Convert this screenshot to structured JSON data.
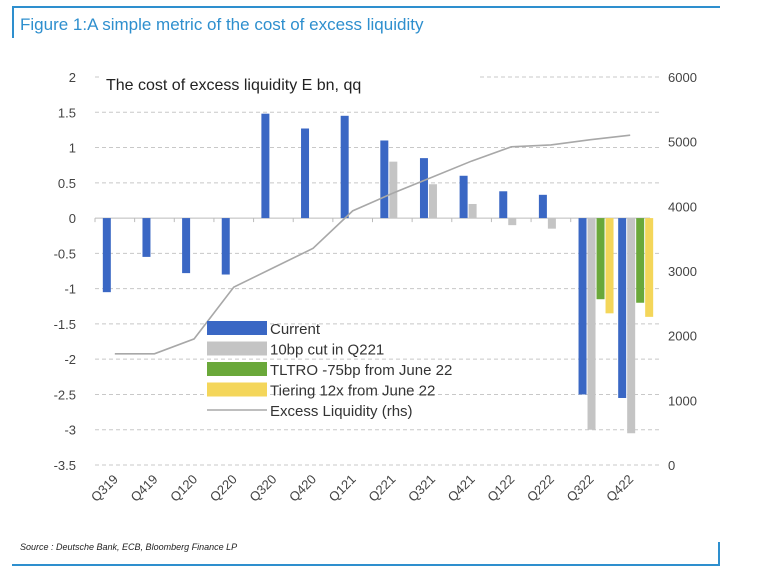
{
  "figure_title": "Figure 1:A simple metric of the cost of excess liquidity",
  "source": "Source : Deutsche Bank, ECB, Bloomberg Finance LP",
  "chart_data": {
    "type": "bar",
    "title": "The cost of excess liquidity E bn, qq",
    "categories": [
      "Q319",
      "Q419",
      "Q120",
      "Q220",
      "Q320",
      "Q420",
      "Q121",
      "Q221",
      "Q321",
      "Q421",
      "Q122",
      "Q222",
      "Q322",
      "Q422"
    ],
    "ylim": [
      -3.5,
      2
    ],
    "yticks": [
      "2",
      "1.5",
      "1",
      "0.5",
      "0",
      "-0.5",
      "-1",
      "-1.5",
      "-2",
      "-2.5",
      "-3",
      "-3.5"
    ],
    "y2lim": [
      0,
      6000
    ],
    "y2ticks": [
      "6000",
      "5000",
      "4000",
      "3000",
      "2000",
      "1000",
      "0"
    ],
    "grid": true,
    "legend_position": "bottom-left",
    "series": [
      {
        "name": "Current",
        "type": "bar",
        "axis": "left",
        "color": "#3a67c4",
        "values": [
          -1.05,
          -0.55,
          -0.78,
          -0.8,
          1.48,
          1.27,
          1.45,
          1.1,
          0.85,
          0.6,
          0.38,
          0.33,
          -2.5,
          -2.55
        ]
      },
      {
        "name": "10bp cut in Q221",
        "type": "bar",
        "axis": "left",
        "color": "#c4c4c4",
        "values": [
          null,
          null,
          null,
          null,
          null,
          null,
          null,
          0.8,
          0.48,
          0.2,
          -0.1,
          -0.15,
          -3.0,
          -3.05
        ]
      },
      {
        "name": "TLTRO -75bp from June 22",
        "type": "bar",
        "axis": "left",
        "color": "#6aa83a",
        "values": [
          null,
          null,
          null,
          null,
          null,
          null,
          null,
          null,
          null,
          null,
          null,
          null,
          -1.15,
          -1.2
        ]
      },
      {
        "name": "Tiering 12x from June 22",
        "type": "bar",
        "axis": "left",
        "color": "#f4d65a",
        "values": [
          null,
          null,
          null,
          null,
          null,
          null,
          null,
          null,
          null,
          null,
          null,
          null,
          -1.35,
          -1.4
        ]
      },
      {
        "name": "Excess Liquidity (rhs)",
        "type": "line",
        "axis": "right",
        "color": "#a8a8a8",
        "values": [
          1720,
          1720,
          1950,
          2750,
          3050,
          3350,
          3930,
          4200,
          4450,
          4700,
          4920,
          4950,
          5030,
          5100
        ]
      }
    ]
  }
}
